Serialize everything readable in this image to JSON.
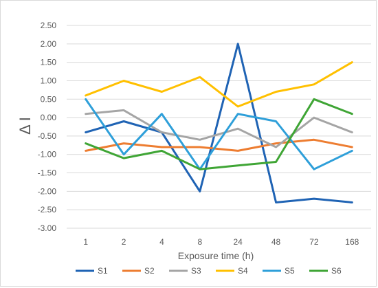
{
  "chart_data": {
    "type": "line",
    "title": "",
    "xlabel": "Exposure time (h)",
    "ylabel": "Δ I",
    "categories": [
      "1",
      "2",
      "4",
      "8",
      "24",
      "48",
      "72",
      "168"
    ],
    "ylim": [
      -3.0,
      2.5
    ],
    "ystep": 0.5,
    "grid": true,
    "legend_position": "bottom",
    "series": [
      {
        "name": "S1",
        "color": "#1f63b4",
        "values": [
          -0.4,
          -0.1,
          -0.4,
          -2.0,
          2.0,
          -2.3,
          -2.2,
          -2.3
        ]
      },
      {
        "name": "S2",
        "color": "#ed7d31",
        "values": [
          -0.9,
          -0.7,
          -0.8,
          -0.8,
          -0.9,
          -0.7,
          -0.6,
          -0.8
        ]
      },
      {
        "name": "S3",
        "color": "#a5a5a5",
        "values": [
          0.1,
          0.2,
          -0.4,
          -0.6,
          -0.3,
          -0.8,
          0.0,
          -0.4
        ]
      },
      {
        "name": "S4",
        "color": "#ffc000",
        "values": [
          0.6,
          1.0,
          0.7,
          1.1,
          0.3,
          0.7,
          0.9,
          1.5
        ]
      },
      {
        "name": "S5",
        "color": "#2e9fd9",
        "values": [
          0.5,
          -1.0,
          0.1,
          -1.4,
          0.1,
          -0.1,
          -1.4,
          -0.9
        ]
      },
      {
        "name": "S6",
        "color": "#3fa535",
        "values": [
          -0.7,
          -1.1,
          -0.9,
          -1.4,
          -1.3,
          -1.2,
          0.5,
          0.1
        ]
      }
    ]
  }
}
